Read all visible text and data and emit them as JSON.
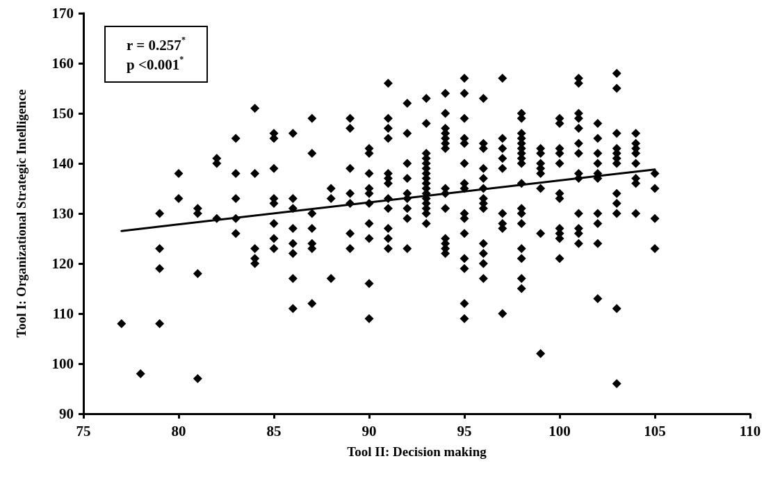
{
  "chart_data": {
    "type": "scatter",
    "xlabel": "Tool II: Decision making",
    "ylabel": "Tool I: Organizational Strategic Intelligence",
    "annotations": [
      "r = 0.257$^{*}$",
      "p <0.001$^{*}$"
    ],
    "xlim": [
      75,
      110
    ],
    "xticks": [
      75,
      80,
      85,
      90,
      95,
      100,
      105,
      110
    ],
    "ylim": [
      90,
      170
    ],
    "yticks": [
      90,
      100,
      110,
      120,
      130,
      140,
      150,
      160,
      170
    ],
    "grid": false,
    "marker": "diamond",
    "series": [
      {
        "color": "#000000",
        "x": [
          77,
          78,
          79,
          79,
          79,
          79,
          80,
          80,
          81,
          81,
          81,
          81,
          82,
          82,
          82,
          83,
          83,
          83,
          83,
          83,
          84,
          84,
          84,
          84,
          84,
          85,
          85,
          85,
          85,
          85,
          85,
          85,
          85,
          86,
          86,
          86,
          86,
          86,
          86,
          86,
          86,
          87,
          87,
          87,
          87,
          87,
          87,
          87,
          88,
          88,
          88,
          89,
          89,
          89,
          89,
          89,
          89,
          89,
          90,
          90,
          90,
          90,
          90,
          90,
          90,
          90,
          90,
          90,
          91,
          91,
          91,
          91,
          91,
          91,
          91,
          91,
          91,
          91,
          91,
          91,
          92,
          92,
          92,
          92,
          92,
          92,
          92,
          92,
          92,
          93,
          93,
          93,
          93,
          93,
          93,
          93,
          93,
          93,
          93,
          93,
          93,
          93,
          93,
          93,
          93,
          94,
          94,
          94,
          94,
          94,
          94,
          94,
          94,
          94,
          94,
          94,
          94,
          94,
          94,
          95,
          95,
          95,
          95,
          95,
          95,
          95,
          95,
          95,
          95,
          95,
          95,
          95,
          95,
          95,
          96,
          96,
          96,
          96,
          96,
          96,
          96,
          96,
          96,
          96,
          96,
          96,
          96,
          97,
          97,
          97,
          97,
          97,
          97,
          97,
          97,
          97,
          98,
          98,
          98,
          98,
          98,
          98,
          98,
          98,
          98,
          98,
          98,
          98,
          98,
          98,
          98,
          98,
          98,
          99,
          99,
          99,
          99,
          99,
          99,
          99,
          99,
          100,
          100,
          100,
          100,
          100,
          100,
          100,
          100,
          100,
          100,
          100,
          101,
          101,
          101,
          101,
          101,
          101,
          101,
          101,
          101,
          101,
          101,
          101,
          101,
          102,
          102,
          102,
          102,
          102,
          102,
          102,
          102,
          102,
          102,
          103,
          103,
          103,
          103,
          103,
          103,
          103,
          103,
          103,
          103,
          103,
          103,
          104,
          104,
          104,
          104,
          104,
          104,
          104,
          104,
          105,
          105,
          105,
          105
        ],
        "values": [
          108,
          98,
          130,
          123,
          119,
          108,
          138,
          133,
          131,
          130,
          118,
          97,
          141,
          140,
          129,
          145,
          138,
          133,
          129,
          126,
          151,
          138,
          123,
          121,
          120,
          146,
          145,
          139,
          133,
          132,
          128,
          125,
          123,
          146,
          133,
          131,
          127,
          124,
          122,
          117,
          111,
          149,
          142,
          130,
          127,
          124,
          123,
          112,
          135,
          133,
          117,
          149,
          147,
          139,
          134,
          132,
          126,
          123,
          143,
          142,
          138,
          135,
          134,
          132,
          128,
          125,
          116,
          109,
          156,
          149,
          147,
          145,
          138,
          137,
          136,
          133,
          131,
          127,
          125,
          123,
          152,
          146,
          140,
          137,
          134,
          133,
          131,
          129,
          123,
          153,
          148,
          142,
          141,
          140,
          139,
          138,
          137,
          136,
          135,
          134,
          133,
          132,
          131,
          130,
          128,
          154,
          150,
          147,
          146,
          145,
          144,
          143,
          135,
          134,
          131,
          125,
          124,
          123,
          122,
          157,
          154,
          149,
          145,
          144,
          140,
          136,
          135,
          130,
          129,
          126,
          121,
          119,
          112,
          109,
          153,
          144,
          143,
          139,
          137,
          135,
          133,
          132,
          131,
          124,
          122,
          120,
          117,
          157,
          145,
          143,
          141,
          139,
          130,
          128,
          127,
          110,
          150,
          149,
          146,
          145,
          144,
          143,
          142,
          141,
          140,
          136,
          131,
          130,
          128,
          123,
          121,
          117,
          115,
          143,
          142,
          140,
          139,
          138,
          135,
          126,
          102,
          149,
          148,
          143,
          142,
          140,
          134,
          133,
          127,
          126,
          125,
          121,
          157,
          156,
          150,
          149,
          147,
          144,
          142,
          138,
          137,
          130,
          127,
          126,
          124,
          148,
          145,
          142,
          140,
          138,
          137,
          130,
          128,
          124,
          113,
          158,
          155,
          146,
          143,
          142,
          141,
          140,
          134,
          132,
          130,
          111,
          96,
          146,
          144,
          143,
          142,
          140,
          137,
          136,
          130,
          138,
          135,
          129,
          123
        ]
      },
      {
        "type": "line",
        "color": "#000000",
        "marker": "none",
        "line_style": "solid",
        "x": [
          77,
          105
        ],
        "values": [
          126.5,
          138.8
        ]
      }
    ]
  }
}
